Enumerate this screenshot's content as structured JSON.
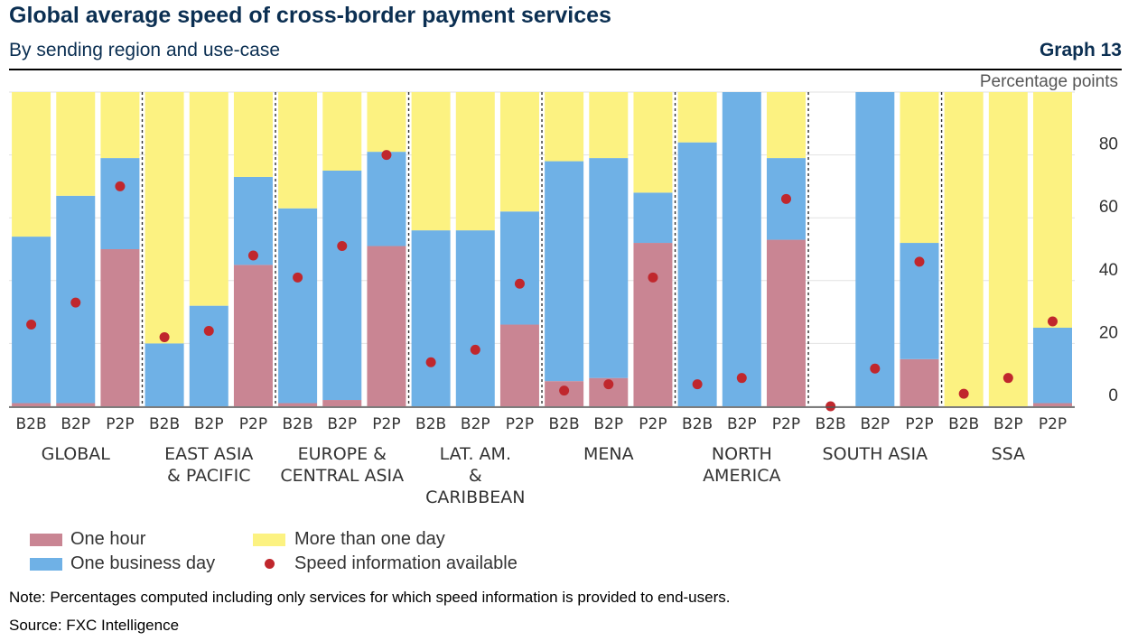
{
  "header": {
    "title": "Global average speed of cross-border payment services",
    "subtitle": "By sending region and use-case",
    "graph_number": "Graph 13",
    "unit": "Percentage points"
  },
  "colors": {
    "one_hour": "#c98593",
    "one_business_day": "#6fb1e6",
    "more_than_one_day": "#fcf281",
    "speed_info": "#c0272d",
    "grid": "#e2e2e2"
  },
  "legend": {
    "one_hour": "One hour",
    "one_business_day": "One business day",
    "more_than_one_day": "More than one day",
    "speed_info": "Speed information available"
  },
  "footer": {
    "note": "Note: Percentages computed including only services for which speed information is provided to end-users.",
    "source": "Source: FXC Intelligence"
  },
  "chart_data": {
    "type": "bar",
    "stacked": true,
    "ylim": [
      0,
      100
    ],
    "yticks": [
      0,
      20,
      40,
      60,
      80
    ],
    "grid": true,
    "groups": [
      {
        "label": [
          "GLOBAL"
        ],
        "bars": [
          {
            "use_case": "B2B",
            "one_hour": 1,
            "one_business_day": 53,
            "more_than_one_day": 46,
            "speed_info": 26
          },
          {
            "use_case": "B2P",
            "one_hour": 1,
            "one_business_day": 66,
            "more_than_one_day": 33,
            "speed_info": 33
          },
          {
            "use_case": "P2P",
            "one_hour": 50,
            "one_business_day": 29,
            "more_than_one_day": 21,
            "speed_info": 70
          }
        ]
      },
      {
        "label": [
          "EAST ASIA",
          "& PACIFIC"
        ],
        "bars": [
          {
            "use_case": "B2B",
            "one_hour": 0,
            "one_business_day": 20,
            "more_than_one_day": 80,
            "speed_info": 22
          },
          {
            "use_case": "B2P",
            "one_hour": 0,
            "one_business_day": 32,
            "more_than_one_day": 68,
            "speed_info": 24
          },
          {
            "use_case": "P2P",
            "one_hour": 45,
            "one_business_day": 28,
            "more_than_one_day": 27,
            "speed_info": 48
          }
        ]
      },
      {
        "label": [
          "EUROPE &",
          "CENTRAL ASIA"
        ],
        "bars": [
          {
            "use_case": "B2B",
            "one_hour": 1,
            "one_business_day": 62,
            "more_than_one_day": 37,
            "speed_info": 41
          },
          {
            "use_case": "B2P",
            "one_hour": 2,
            "one_business_day": 73,
            "more_than_one_day": 25,
            "speed_info": 51
          },
          {
            "use_case": "P2P",
            "one_hour": 51,
            "one_business_day": 30,
            "more_than_one_day": 19,
            "speed_info": 80
          }
        ]
      },
      {
        "label": [
          "LAT. AM.",
          "&",
          "CARIBBEAN"
        ],
        "bars": [
          {
            "use_case": "B2B",
            "one_hour": 0,
            "one_business_day": 56,
            "more_than_one_day": 44,
            "speed_info": 14
          },
          {
            "use_case": "B2P",
            "one_hour": 0,
            "one_business_day": 56,
            "more_than_one_day": 44,
            "speed_info": 18
          },
          {
            "use_case": "P2P",
            "one_hour": 26,
            "one_business_day": 36,
            "more_than_one_day": 38,
            "speed_info": 39
          }
        ]
      },
      {
        "label": [
          "MENA"
        ],
        "bars": [
          {
            "use_case": "B2B",
            "one_hour": 8,
            "one_business_day": 70,
            "more_than_one_day": 22,
            "speed_info": 5
          },
          {
            "use_case": "B2P",
            "one_hour": 9,
            "one_business_day": 70,
            "more_than_one_day": 21,
            "speed_info": 7
          },
          {
            "use_case": "P2P",
            "one_hour": 52,
            "one_business_day": 16,
            "more_than_one_day": 32,
            "speed_info": 41
          }
        ]
      },
      {
        "label": [
          "NORTH",
          "AMERICA"
        ],
        "bars": [
          {
            "use_case": "B2B",
            "one_hour": 0,
            "one_business_day": 84,
            "more_than_one_day": 16,
            "speed_info": 7
          },
          {
            "use_case": "B2P",
            "one_hour": 0,
            "one_business_day": 100,
            "more_than_one_day": 0,
            "speed_info": 9
          },
          {
            "use_case": "P2P",
            "one_hour": 53,
            "one_business_day": 26,
            "more_than_one_day": 21,
            "speed_info": 66
          }
        ]
      },
      {
        "label": [
          "SOUTH ASIA"
        ],
        "bars": [
          {
            "use_case": "B2B",
            "one_hour": 0,
            "one_business_day": 0,
            "more_than_one_day": 0,
            "speed_info": 0
          },
          {
            "use_case": "B2P",
            "one_hour": 0,
            "one_business_day": 100,
            "more_than_one_day": 0,
            "speed_info": 12
          },
          {
            "use_case": "P2P",
            "one_hour": 15,
            "one_business_day": 37,
            "more_than_one_day": 48,
            "speed_info": 46
          }
        ]
      },
      {
        "label": [
          "SSA"
        ],
        "bars": [
          {
            "use_case": "B2B",
            "one_hour": 0,
            "one_business_day": 0,
            "more_than_one_day": 100,
            "speed_info": 4
          },
          {
            "use_case": "B2P",
            "one_hour": 0,
            "one_business_day": 0,
            "more_than_one_day": 100,
            "speed_info": 9
          },
          {
            "use_case": "P2P",
            "one_hour": 1,
            "one_business_day": 24,
            "more_than_one_day": 75,
            "speed_info": 27
          }
        ]
      }
    ]
  }
}
